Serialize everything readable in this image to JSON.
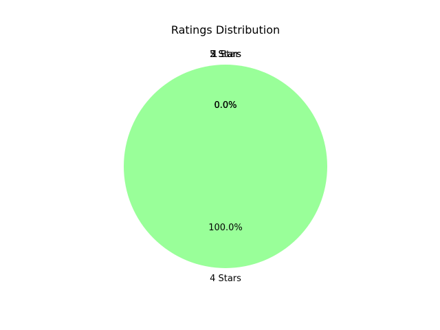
{
  "chart_data": {
    "type": "pie",
    "title": "Ratings Distribution",
    "categories": [
      "1 Star",
      "2 Stars",
      "3 Stars",
      "5 Stars",
      "4 Stars"
    ],
    "values": [
      0.0,
      0.0,
      0.0,
      0.0,
      100.0
    ],
    "value_labels": [
      "0.0%",
      "0.0%",
      "0.0%",
      "0.0%",
      "100.0%"
    ],
    "colors": [
      "#ff9999",
      "#66b3ff",
      "#99ff99",
      "#ffcc99",
      "#99ff99"
    ],
    "start_angle_deg": 90
  }
}
